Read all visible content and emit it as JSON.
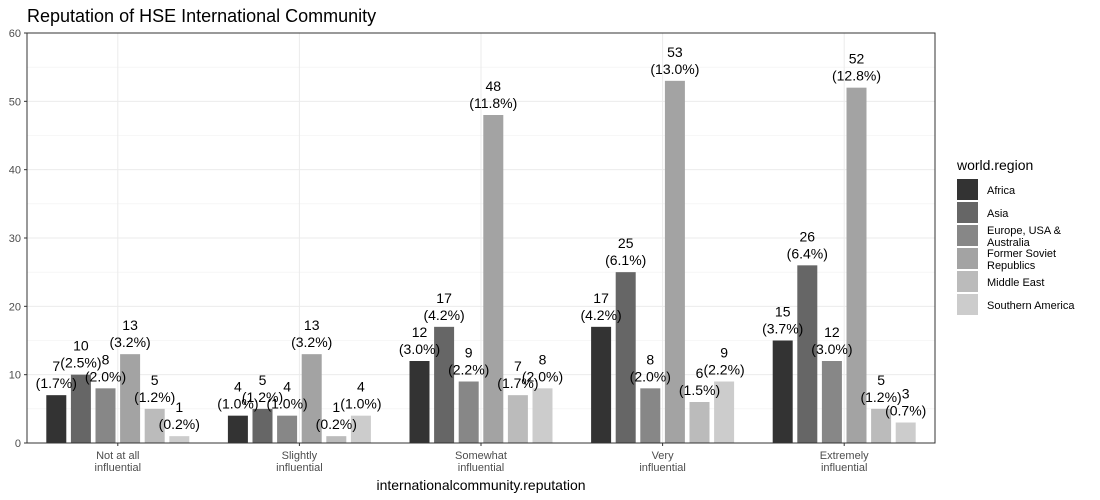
{
  "chart_data": {
    "type": "bar",
    "title": "Reputation of HSE International Community",
    "xlabel": "internationalcommunity.reputation",
    "ylabel": "",
    "ylim": [
      0,
      60
    ],
    "yticks": [
      0,
      10,
      20,
      30,
      40,
      50,
      60
    ],
    "grid": true,
    "legend_position": "right",
    "categories": [
      [
        "Not at all",
        "influential"
      ],
      [
        "Slightly",
        "influential"
      ],
      [
        "Somewhat",
        "influential"
      ],
      [
        "Very",
        "influential"
      ],
      [
        "Extremely",
        "influential"
      ]
    ],
    "legend_title": "world.region",
    "series": [
      {
        "name": "Africa",
        "name_lines": [
          "Africa"
        ],
        "color": "#333333",
        "values": [
          7,
          4,
          12,
          17,
          15
        ],
        "percents": [
          "(1.7%)",
          "(1.0%)",
          "(3.0%)",
          "(4.2%)",
          "(3.7%)"
        ]
      },
      {
        "name": "Asia",
        "name_lines": [
          "Asia"
        ],
        "color": "#666666",
        "values": [
          10,
          5,
          17,
          25,
          26
        ],
        "percents": [
          "(2.5%)",
          "(1.2%)",
          "(4.2%)",
          "(6.1%)",
          "(6.4%)"
        ]
      },
      {
        "name": "Europe, USA & Australia",
        "name_lines": [
          "Europe, USA &",
          "Australia"
        ],
        "color": "#878787",
        "values": [
          8,
          4,
          9,
          8,
          12
        ],
        "percents": [
          "(2.0%)",
          "(1.0%)",
          "(2.2%)",
          "(2.0%)",
          "(3.0%)"
        ]
      },
      {
        "name": "Former Soviet Republics",
        "name_lines": [
          "Former Soviet",
          "Republics"
        ],
        "color": "#a3a3a3",
        "values": [
          13,
          13,
          48,
          53,
          52
        ],
        "percents": [
          "(3.2%)",
          "(3.2%)",
          "(11.8%)",
          "(13.0%)",
          "(12.8%)"
        ]
      },
      {
        "name": "Middle East",
        "name_lines": [
          "Middle East"
        ],
        "color": "#bbbbbb",
        "values": [
          5,
          1,
          7,
          6,
          5
        ],
        "percents": [
          "(1.2%)",
          "(0.2%)",
          "(1.7%)",
          "(1.5%)",
          "(1.2%)"
        ]
      },
      {
        "name": "Southern America",
        "name_lines": [
          "Southern America"
        ],
        "color": "#cccccc",
        "values": [
          1,
          4,
          8,
          9,
          3
        ],
        "percents": [
          "(0.2%)",
          "(1.0%)",
          "(2.0%)",
          "(2.2%)",
          "(0.7%)"
        ]
      }
    ]
  }
}
